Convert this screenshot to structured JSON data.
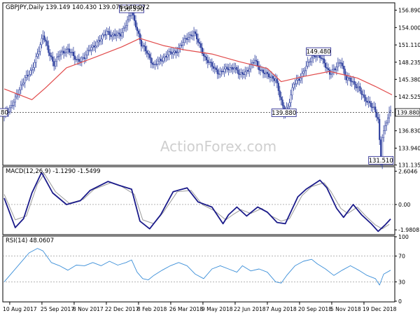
{
  "header": {
    "symbol_line": "GBPJPY,Daily  139.149 140.430 139.076 140.072",
    "macd_label": "MACD(12,26,9) -1.1290 -1.5499",
    "rsi_label": "RSI(14) 48.0607",
    "watermark": "ActionForex.com"
  },
  "chart_data": [
    {
      "type": "candlestick",
      "title": "GBPJPY,Daily  139.149 140.430 139.076 140.072",
      "symbol": "GBPJPY",
      "timeframe": "Daily",
      "last_ohlc": {
        "open": 139.149,
        "high": 140.43,
        "low": 139.076,
        "close": 140.072
      },
      "ylim": [
        131.2,
        158.0
      ],
      "yticks": [
        "156.890",
        "154.000",
        "151.110",
        "148.235",
        "145.380",
        "142.525",
        "139.880",
        "136.830",
        "133.940",
        "131.135"
      ],
      "xticks": [
        "10 Aug 2017",
        "25 Sep 2017",
        "8 Nov 2017",
        "22 Dec 2017",
        "8 Feb 2018",
        "26 Mar 2018",
        "9 May 2018",
        "22 Jun 2018",
        "7 Aug 2018",
        "20 Sep 2018",
        "5 Nov 2018",
        "19 Dec 2018"
      ],
      "price_path": [
        [
          0,
          139.3
        ],
        [
          5,
          141.0
        ],
        [
          10,
          143.0
        ],
        [
          15,
          145.8
        ],
        [
          20,
          146.7
        ],
        [
          25,
          150.5
        ],
        [
          28,
          152.7
        ],
        [
          32,
          150.0
        ],
        [
          36,
          148.0
        ],
        [
          40,
          149.5
        ],
        [
          46,
          150.5
        ],
        [
          52,
          148.5
        ],
        [
          58,
          149.0
        ],
        [
          62,
          150.5
        ],
        [
          70,
          152.0
        ],
        [
          74,
          153.5
        ],
        [
          78,
          152.5
        ],
        [
          84,
          153.0
        ],
        [
          88,
          154.5
        ],
        [
          92,
          156.59
        ],
        [
          95,
          154.5
        ],
        [
          99,
          151.0
        ],
        [
          103,
          150.0
        ],
        [
          108,
          147.5
        ],
        [
          112,
          148.5
        ],
        [
          118,
          149.5
        ],
        [
          124,
          150.0
        ],
        [
          129,
          151.5
        ],
        [
          133,
          152.5
        ],
        [
          137,
          153.2
        ],
        [
          141,
          151.0
        ],
        [
          145,
          149.0
        ],
        [
          150,
          147.5
        ],
        [
          155,
          146.5
        ],
        [
          160,
          147.0
        ],
        [
          166,
          147.5
        ],
        [
          170,
          146.0
        ],
        [
          176,
          147.0
        ],
        [
          181,
          148.5
        ],
        [
          185,
          147.0
        ],
        [
          190,
          146.0
        ],
        [
          196,
          145.5
        ],
        [
          199,
          142.5
        ],
        [
          202,
          139.88
        ],
        [
          205,
          141.0
        ],
        [
          209,
          144.5
        ],
        [
          213,
          145.5
        ],
        [
          218,
          147.5
        ],
        [
          224,
          149.5
        ],
        [
          227,
          149.48
        ],
        [
          231,
          148.0
        ],
        [
          235,
          146.5
        ],
        [
          239,
          147.0
        ],
        [
          243,
          148.5
        ],
        [
          247,
          145.5
        ],
        [
          251,
          145.0
        ],
        [
          256,
          144.0
        ],
        [
          260,
          142.0
        ],
        [
          264,
          141.5
        ],
        [
          267,
          140.5
        ],
        [
          270,
          138.5
        ],
        [
          272,
          131.51
        ],
        [
          273,
          136.0
        ],
        [
          276,
          138.5
        ],
        [
          279,
          140.07
        ]
      ],
      "ma_path": [
        [
          0,
          143.8
        ],
        [
          20,
          142.0
        ],
        [
          30,
          144.0
        ],
        [
          45,
          147.3
        ],
        [
          65,
          149.0
        ],
        [
          85,
          150.8
        ],
        [
          98,
          152.2
        ],
        [
          115,
          151.0
        ],
        [
          130,
          150.3
        ],
        [
          150,
          149.6
        ],
        [
          170,
          148.3
        ],
        [
          190,
          147.2
        ],
        [
          200,
          145.0
        ],
        [
          215,
          145.8
        ],
        [
          235,
          146.7
        ],
        [
          255,
          145.6
        ],
        [
          268,
          144.2
        ],
        [
          280,
          142.8
        ]
      ],
      "annotations": [
        {
          "label": "156.590",
          "value": 156.59,
          "index": 92
        },
        {
          "label": "149.480",
          "value": 149.48,
          "index": 227
        },
        {
          "label": "139.880",
          "value": 139.88,
          "index": 202
        },
        {
          "label": "131.510",
          "value": 131.51,
          "index": 272
        }
      ],
      "reference_lines": [
        {
          "value": 139.88,
          "style": "dotted"
        }
      ],
      "current_price_label": "139.880",
      "series": [
        {
          "name": "GBPJPY"
        }
      ],
      "grid": false,
      "colors": {
        "candles": "#2d3f9e",
        "moving_average": "#e14b4b"
      }
    },
    {
      "type": "line",
      "title": "MACD(12,26,9) -1.1290 -1.5499",
      "ylim": [
        -2.3,
        2.9
      ],
      "yticks": [
        "2.6046",
        "0.00",
        "-1.9808"
      ],
      "series": [
        {
          "name": "MACD",
          "values": [
            [
              0,
              0.5
            ],
            [
              8,
              -1.8
            ],
            [
              14,
              -1.1
            ],
            [
              20,
              0.9
            ],
            [
              27,
              2.5
            ],
            [
              35,
              0.9
            ],
            [
              45,
              0.0
            ],
            [
              55,
              0.3
            ],
            [
              62,
              1.1
            ],
            [
              75,
              1.8
            ],
            [
              83,
              1.5
            ],
            [
              92,
              1.2
            ],
            [
              98,
              -1.3
            ],
            [
              105,
              -1.9
            ],
            [
              113,
              -0.8
            ],
            [
              122,
              1.0
            ],
            [
              132,
              1.3
            ],
            [
              140,
              0.2
            ],
            [
              150,
              -0.2
            ],
            [
              158,
              -1.5
            ],
            [
              162,
              -0.8
            ],
            [
              168,
              -0.2
            ],
            [
              175,
              -0.9
            ],
            [
              183,
              -0.2
            ],
            [
              190,
              -0.6
            ],
            [
              197,
              -1.4
            ],
            [
              203,
              -1.5
            ],
            [
              212,
              0.6
            ],
            [
              218,
              1.2
            ],
            [
              228,
              1.9
            ],
            [
              233,
              1.3
            ],
            [
              240,
              -0.3
            ],
            [
              245,
              -1.0
            ],
            [
              252,
              0.0
            ],
            [
              258,
              -0.8
            ],
            [
              265,
              -1.5
            ],
            [
              270,
              -2.1
            ],
            [
              275,
              -1.6
            ],
            [
              279,
              -1.13
            ]
          ]
        },
        {
          "name": "Signal",
          "values": [
            [
              0,
              0.8
            ],
            [
              8,
              -1.2
            ],
            [
              16,
              -0.9
            ],
            [
              24,
              1.6
            ],
            [
              29,
              2.4
            ],
            [
              37,
              1.0
            ],
            [
              47,
              0.1
            ],
            [
              57,
              0.4
            ],
            [
              65,
              1.2
            ],
            [
              77,
              1.7
            ],
            [
              85,
              1.4
            ],
            [
              94,
              0.8
            ],
            [
              100,
              -1.2
            ],
            [
              108,
              -1.5
            ],
            [
              115,
              -0.6
            ],
            [
              125,
              1.0
            ],
            [
              135,
              1.1
            ],
            [
              143,
              0.0
            ],
            [
              152,
              -0.5
            ],
            [
              160,
              -1.2
            ],
            [
              165,
              -0.8
            ],
            [
              171,
              -0.4
            ],
            [
              178,
              -0.7
            ],
            [
              186,
              -0.3
            ],
            [
              193,
              -0.9
            ],
            [
              200,
              -1.3
            ],
            [
              206,
              -1.1
            ],
            [
              215,
              0.7
            ],
            [
              222,
              1.4
            ],
            [
              231,
              1.7
            ],
            [
              236,
              1.0
            ],
            [
              243,
              -0.3
            ],
            [
              248,
              -0.7
            ],
            [
              255,
              -0.2
            ],
            [
              261,
              -0.9
            ],
            [
              268,
              -1.6
            ],
            [
              273,
              -1.9
            ],
            [
              278,
              -1.55
            ]
          ]
        }
      ],
      "colors": {
        "macd": "#1a1a8a",
        "signal": "#9a9a9a"
      }
    },
    {
      "type": "line",
      "title": "RSI(14) 48.0607",
      "ylim": [
        0,
        100
      ],
      "yticks": [
        "100",
        "70",
        "30",
        "0"
      ],
      "levels": [
        70,
        30
      ],
      "series": [
        {
          "name": "RSI",
          "values": [
            [
              0,
              30
            ],
            [
              6,
              45
            ],
            [
              12,
              60
            ],
            [
              18,
              75
            ],
            [
              24,
              82
            ],
            [
              28,
              78
            ],
            [
              34,
              60
            ],
            [
              40,
              55
            ],
            [
              46,
              48
            ],
            [
              52,
              56
            ],
            [
              58,
              55
            ],
            [
              64,
              60
            ],
            [
              70,
              55
            ],
            [
              76,
              62
            ],
            [
              82,
              56
            ],
            [
              88,
              60
            ],
            [
              92,
              64
            ],
            [
              96,
              45
            ],
            [
              100,
              35
            ],
            [
              104,
              33
            ],
            [
              108,
              40
            ],
            [
              114,
              48
            ],
            [
              120,
              55
            ],
            [
              126,
              60
            ],
            [
              132,
              55
            ],
            [
              138,
              42
            ],
            [
              144,
              35
            ],
            [
              150,
              50
            ],
            [
              156,
              55
            ],
            [
              162,
              50
            ],
            [
              168,
              45
            ],
            [
              172,
              55
            ],
            [
              178,
              47
            ],
            [
              184,
              50
            ],
            [
              190,
              45
            ],
            [
              196,
              30
            ],
            [
              200,
              28
            ],
            [
              204,
              40
            ],
            [
              210,
              55
            ],
            [
              216,
              62
            ],
            [
              222,
              65
            ],
            [
              226,
              58
            ],
            [
              232,
              50
            ],
            [
              238,
              40
            ],
            [
              244,
              48
            ],
            [
              250,
              55
            ],
            [
              256,
              48
            ],
            [
              262,
              40
            ],
            [
              268,
              35
            ],
            [
              271,
              25
            ],
            [
              274,
              42
            ],
            [
              279,
              48
            ]
          ]
        }
      ],
      "colors": {
        "rsi": "#3a8ed8"
      }
    }
  ]
}
